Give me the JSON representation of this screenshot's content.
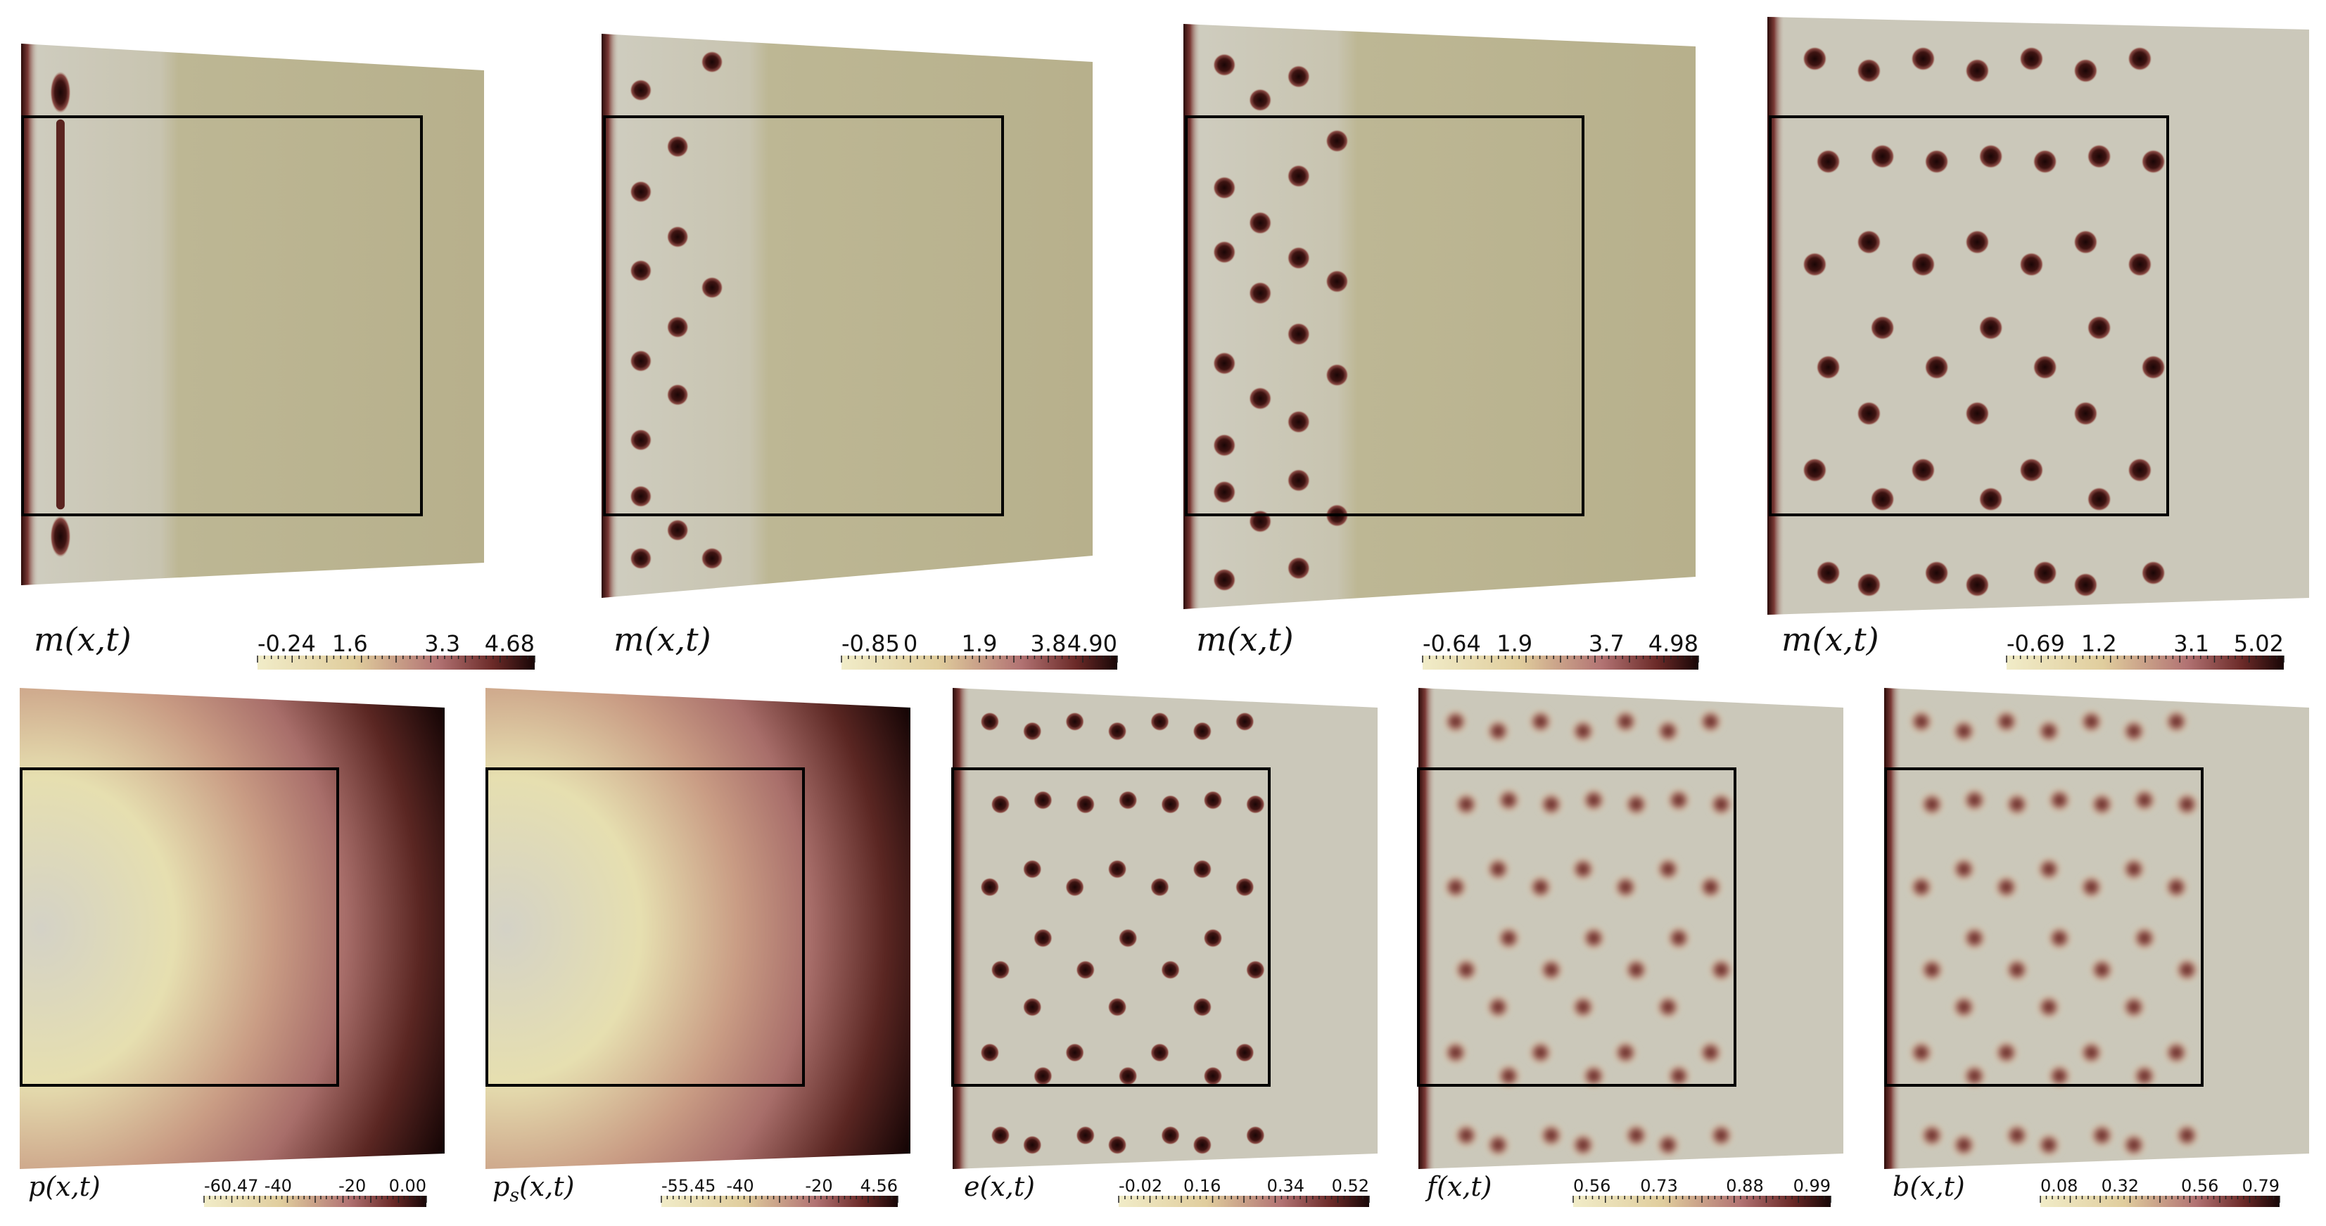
{
  "palette": {
    "light": "#d4d1c4",
    "pale_yellow": "#ece6bd",
    "olive": "#bdb690",
    "dusty_pink": "#b27373",
    "dark_maroon": "#3c1412",
    "black": "#1a0808",
    "frame": "#000000"
  },
  "panels": [
    {
      "id": "m1",
      "variable": {
        "base": "m",
        "sub": "",
        "args": "(x,t)"
      },
      "colorbar": {
        "ticks": [
          "-0.24",
          "1.6",
          "3.3",
          "4.68"
        ]
      },
      "background": "olive_band",
      "spots": "single_column"
    },
    {
      "id": "m2",
      "variable": {
        "base": "m",
        "sub": "",
        "args": "(x,t)"
      },
      "colorbar": {
        "ticks": [
          "-0.85",
          "0",
          "1.9",
          "3.8",
          "4.90"
        ]
      },
      "background": "olive_band",
      "spots": "three_columns"
    },
    {
      "id": "m3",
      "variable": {
        "base": "m",
        "sub": "",
        "args": "(x,t)"
      },
      "colorbar": {
        "ticks": [
          "-0.64",
          "1.9",
          "3.7",
          "4.98"
        ]
      },
      "background": "olive_band",
      "spots": "five_columns"
    },
    {
      "id": "m4",
      "variable": {
        "base": "m",
        "sub": "",
        "args": "(x,t)"
      },
      "colorbar": {
        "ticks": [
          "-0.69",
          "1.2",
          "3.1",
          "5.02"
        ]
      },
      "background": "uniform",
      "spots": "full_grid"
    },
    {
      "id": "p",
      "variable": {
        "base": "p",
        "sub": "",
        "args": "(x,t)"
      },
      "colorbar": {
        "ticks": [
          "-60.47",
          "-40",
          "-20",
          "0.00"
        ]
      },
      "background": "radial",
      "spots": "none"
    },
    {
      "id": "ps",
      "variable": {
        "base": "p",
        "sub": "s",
        "args": "(x,t)"
      },
      "colorbar": {
        "ticks": [
          "-55.45",
          "-40",
          "-20",
          "4.56"
        ]
      },
      "background": "radial",
      "spots": "none"
    },
    {
      "id": "e",
      "variable": {
        "base": "e",
        "sub": "",
        "args": "(x,t)"
      },
      "colorbar": {
        "ticks": [
          "-0.02",
          "0.16",
          "0.34",
          "0.52"
        ]
      },
      "background": "uniform",
      "spots": "full_grid"
    },
    {
      "id": "f",
      "variable": {
        "base": "f",
        "sub": "",
        "args": "(x,t)"
      },
      "colorbar": {
        "ticks": [
          "0.56",
          "0.73",
          "0.88",
          "0.99"
        ]
      },
      "background": "uniform",
      "spots": "full_grid_blurred"
    },
    {
      "id": "b",
      "variable": {
        "base": "b",
        "sub": "",
        "args": "(x,t)"
      },
      "colorbar": {
        "ticks": [
          "0.08",
          "0.32",
          "0.56",
          "0.79"
        ]
      },
      "background": "uniform",
      "spots": "full_grid_blurred"
    }
  ]
}
